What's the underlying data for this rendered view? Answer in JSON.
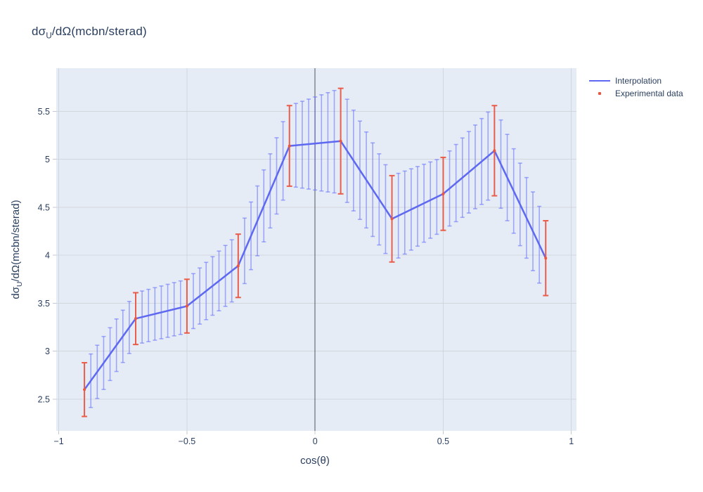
{
  "title": {
    "pre": "dσ",
    "sub": "U",
    "post": "/dΩ(mcbn/sterad)"
  },
  "axes": {
    "x_title": "cos(θ)",
    "y_title": {
      "pre": "dσ",
      "sub": "U",
      "post": "/dΩ(mcbn/sterad)"
    }
  },
  "legend": {
    "items": [
      {
        "label": "Interpolation",
        "marker": "line",
        "color": "#5E68F0"
      },
      {
        "label": "Experimental data",
        "marker": "dot",
        "color": "#EF553B"
      }
    ]
  },
  "chart_data": {
    "type": "line",
    "title": "dσ_U/dΩ(mcbn/sterad)",
    "xlabel": "cos(θ)",
    "ylabel": "dσ_U/dΩ(mcbn/sterad)",
    "xlim": [
      -1.01,
      1.02
    ],
    "ylim": [
      2.17,
      5.95
    ],
    "x_ticks": [
      -1,
      -0.5,
      0,
      0.5,
      1
    ],
    "y_ticks": [
      2.5,
      3,
      3.5,
      4,
      4.5,
      5,
      5.5
    ],
    "grid": true,
    "zeroline_x": 0,
    "legend_position": "right-outside-top",
    "bg_color": "#E5ECF6",
    "grid_color": "#D2D6DD",
    "zeroline_color": "#54565B",
    "tick_mark_color": "#C4C9D1",
    "tick_label_color": "#2a3f5f",
    "series": [
      {
        "name": "Interpolation",
        "type": "line+errorbars",
        "color": "#5E68F0",
        "error_color": "rgba(99,110,250,0.55)",
        "interpolation": "piecewise-linear",
        "sample_start": -0.9,
        "sample_end": 0.9,
        "sample_step": 0.025
      },
      {
        "name": "Experimental data",
        "type": "scatter+errorbars",
        "color": "#EF553B",
        "error_color": "rgba(239,85,59,0.9)",
        "x": [
          -0.9,
          -0.7,
          -0.5,
          -0.3,
          -0.1,
          0.1,
          0.3,
          0.5,
          0.7,
          0.9
        ],
        "y": [
          2.6,
          3.34,
          3.47,
          3.89,
          5.14,
          5.19,
          4.38,
          4.64,
          5.09,
          3.97
        ],
        "yerr": [
          0.28,
          0.27,
          0.28,
          0.33,
          0.42,
          0.55,
          0.45,
          0.38,
          0.47,
          0.39
        ]
      }
    ]
  }
}
